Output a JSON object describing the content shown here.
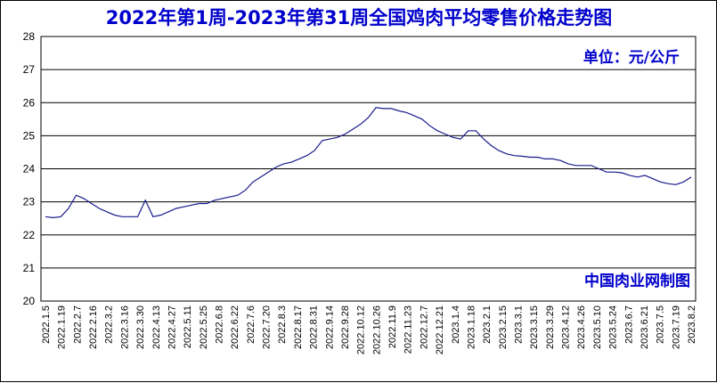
{
  "chart_data": {
    "type": "line",
    "title": "2022年第1周-2023年第31周全国鸡肉平均零售价格走势图",
    "unit_label": "单位：元/公斤",
    "credit": "中国肉业网制图",
    "ylim": [
      20,
      28
    ],
    "yticks": [
      20,
      21,
      22,
      23,
      24,
      25,
      26,
      27,
      28
    ],
    "grid": true,
    "line_color": "#1a1a8c",
    "title_color": "#0000cc",
    "x_tick_labels": [
      "2022.1.5",
      "2022.1.19",
      "2022.2.7",
      "2022.2.16",
      "2022.3.2",
      "2022.3.16",
      "2022.3.30",
      "2022.4.13",
      "2022.4.27",
      "2022.5.11",
      "2022.5.25",
      "2022.6.8",
      "2022.6.22",
      "2022.7.6",
      "2022.7.20",
      "2022.8.3",
      "2022.8.17",
      "2022.8.31",
      "2022.9.14",
      "2022.9.28",
      "2022.10.12",
      "2022.10.26",
      "2022.11.9",
      "2022.11.23",
      "2022.12.7",
      "2022.12.21",
      "2023.1.4",
      "2023.1.18",
      "2023.2.1",
      "2023.2.15",
      "2023.3.1",
      "2023.3.15",
      "2023.3.29",
      "2023.4.12",
      "2023.4.26",
      "2023.5.10",
      "2023.5.24",
      "2023.6.7",
      "2023.6.21",
      "2023.7.5",
      "2023.7.19",
      "2023.8.2"
    ],
    "series": [
      {
        "values": [
          22.55,
          22.52,
          22.55,
          22.8,
          23.2,
          23.1,
          22.95,
          22.8,
          22.7,
          22.6,
          22.55,
          22.55,
          22.55,
          23.05,
          22.55,
          22.6,
          22.7,
          22.8,
          22.85,
          22.9,
          22.95,
          22.95,
          23.05,
          23.1,
          23.15,
          23.2,
          23.35,
          23.6,
          23.75,
          23.9,
          24.05,
          24.15,
          24.2,
          24.3,
          24.4,
          24.55,
          24.85,
          24.9,
          24.95,
          25.05,
          25.2,
          25.35,
          25.55,
          25.85,
          25.82,
          25.82,
          25.75,
          25.7,
          25.6,
          25.5,
          25.3,
          25.15,
          25.05,
          24.95,
          24.9,
          25.15,
          25.15,
          24.9,
          24.7,
          24.55,
          24.45,
          24.4,
          24.38,
          24.35,
          24.35,
          24.3,
          24.3,
          24.25,
          24.15,
          24.1,
          24.1,
          24.1,
          24.0,
          23.9,
          23.9,
          23.88,
          23.8,
          23.75,
          23.8,
          23.7,
          23.6,
          23.55,
          23.52,
          23.6,
          23.75
        ]
      }
    ]
  }
}
